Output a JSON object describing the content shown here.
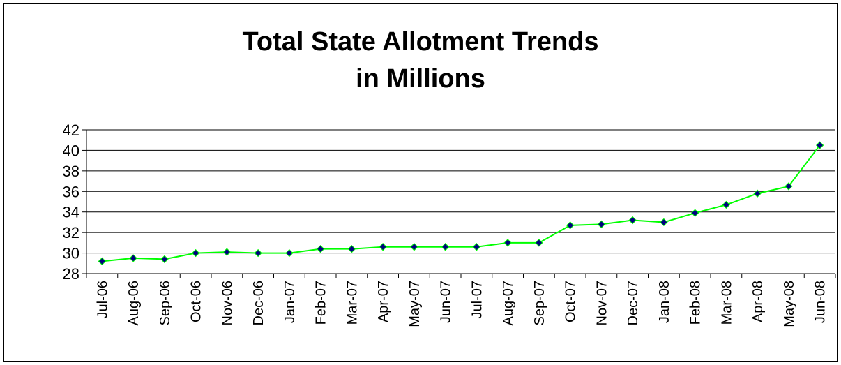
{
  "chart_data": {
    "type": "line",
    "title": [
      "Total State Allotment Trends",
      "in Millions"
    ],
    "categories": [
      "Jul-06",
      "Aug-06",
      "Sep-06",
      "Oct-06",
      "Nov-06",
      "Dec-06",
      "Jan-07",
      "Feb-07",
      "Mar-07",
      "Apr-07",
      "May-07",
      "Jun-07",
      "Jul-07",
      "Aug-07",
      "Sep-07",
      "Oct-07",
      "Nov-07",
      "Dec-07",
      "Jan-08",
      "Feb-08",
      "Mar-08",
      "Apr-08",
      "May-08",
      "Jun-08"
    ],
    "series": [
      {
        "values": [
          29.2,
          29.5,
          29.4,
          30.0,
          30.1,
          30.0,
          30.0,
          30.4,
          30.4,
          30.6,
          30.6,
          30.6,
          30.6,
          31.0,
          31.0,
          32.7,
          32.8,
          33.2,
          33.0,
          33.9,
          34.7,
          35.8,
          36.5,
          40.5
        ]
      }
    ],
    "ylim": [
      28,
      42
    ],
    "yticks": [
      "42",
      "40",
      "38",
      "36",
      "34",
      "32",
      "30",
      "28"
    ],
    "grid": true,
    "line_color": "#00ff00",
    "marker_color": "#000080",
    "gridline_color": "#000000"
  }
}
